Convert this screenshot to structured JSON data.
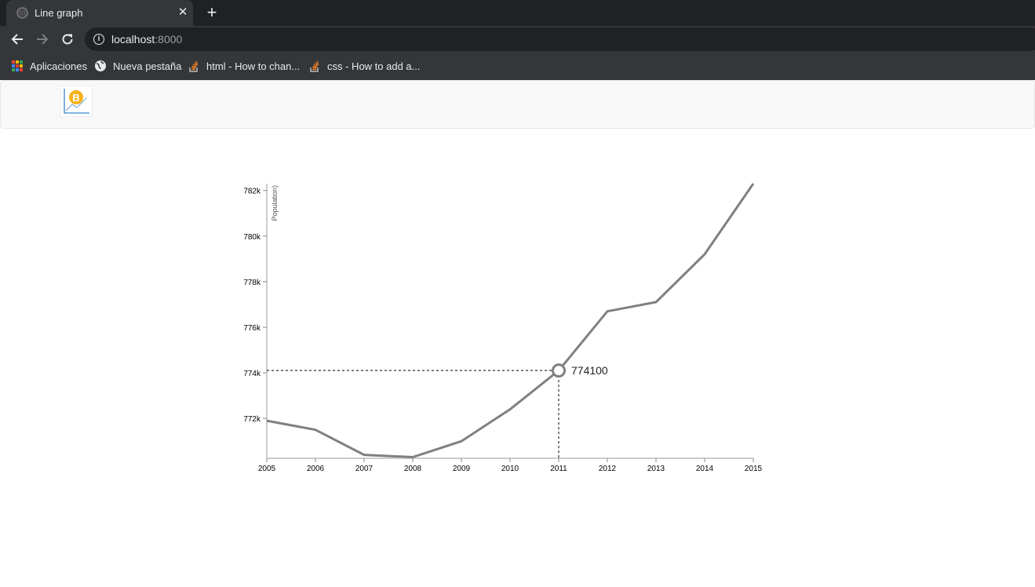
{
  "browser": {
    "tab_title": "Line graph",
    "tab_close_icon": "close-icon",
    "new_tab_icon": "plus-icon",
    "url_host": "localhost",
    "url_port": ":8000",
    "bookmarks": [
      {
        "label": "Aplicaciones",
        "icon": "apps-grid-icon"
      },
      {
        "label": "Nueva pestaña",
        "icon": "globe-icon"
      },
      {
        "label": "html - How to chan...",
        "icon": "stackoverflow-icon"
      },
      {
        "label": "css - How to add a...",
        "icon": "stackoverflow-icon"
      }
    ]
  },
  "page": {
    "logo_icon": "bitcoin-chart-logo-icon"
  },
  "chart_data": {
    "type": "line",
    "ylabel": "Population)",
    "x": [
      2005,
      2006,
      2007,
      2008,
      2009,
      2010,
      2011,
      2012,
      2013,
      2014,
      2015
    ],
    "series": [
      {
        "values": [
          771900,
          771500,
          770400,
          770300,
          771000,
          772400,
          774100,
          776700,
          777100,
          779200,
          782300
        ]
      }
    ],
    "xlim": [
      2005,
      2015
    ],
    "ylim": [
      770250,
      782300
    ],
    "y_ticks": [
      772000,
      774000,
      776000,
      778000,
      780000,
      782000
    ],
    "y_tick_labels": [
      "772k",
      "774k",
      "776k",
      "778k",
      "780k",
      "782k"
    ],
    "x_tick_labels": [
      "2005",
      "2006",
      "2007",
      "2008",
      "2009",
      "2010",
      "2011",
      "2012",
      "2013",
      "2014",
      "2015"
    ],
    "focus": {
      "x": 2011,
      "y": 774100,
      "label": "774100"
    },
    "line_color": "#808080",
    "grid": false
  }
}
